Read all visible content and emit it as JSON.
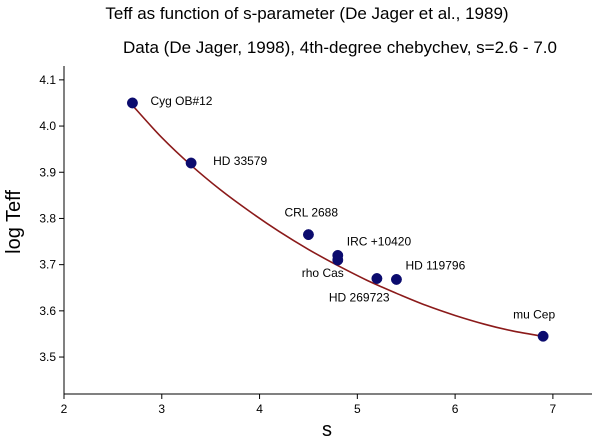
{
  "chart_data": {
    "type": "scatter",
    "title": "Teff as function of s-parameter (De Jager et al., 1989)",
    "subtitle": "Data (De Jager, 1998), 4th-degree chebychev, s=2.6 - 7.0",
    "xlabel": "s",
    "ylabel": "log Teff",
    "xlim": [
      2,
      7.4
    ],
    "ylim": [
      3.42,
      4.13
    ],
    "x_ticks": [
      2,
      3,
      4,
      5,
      6,
      7
    ],
    "y_ticks": [
      3.5,
      3.6,
      3.7,
      3.8,
      3.9,
      4.0,
      4.1
    ],
    "x_tick_labels": [
      "2",
      "3",
      "4",
      "5",
      "6",
      "7"
    ],
    "y_tick_labels": [
      "3.5",
      "3.6",
      "3.7",
      "3.8",
      "3.9",
      "4.0",
      "4.1"
    ],
    "grid": false,
    "points": [
      {
        "label": "Cyg OB#12",
        "x": 2.7,
        "y": 4.05
      },
      {
        "label": "HD 33579",
        "x": 3.3,
        "y": 3.92
      },
      {
        "label": "CRL 2688",
        "x": 4.5,
        "y": 3.765
      },
      {
        "label": "IRC +10420",
        "x": 4.8,
        "y": 3.72
      },
      {
        "label": "rho Cas",
        "x": 4.8,
        "y": 3.71
      },
      {
        "label": "HD 269723",
        "x": 5.2,
        "y": 3.67
      },
      {
        "label": "HD 119796",
        "x": 5.4,
        "y": 3.668
      },
      {
        "label": "mu Cep",
        "x": 6.9,
        "y": 3.545
      }
    ],
    "fit_curve": {
      "x": [
        2.7,
        3.0,
        3.3,
        3.6,
        3.9,
        4.2,
        4.5,
        4.8,
        5.1,
        5.4,
        5.7,
        6.0,
        6.3,
        6.6,
        6.9
      ],
      "y": [
        4.045,
        3.975,
        3.915,
        3.862,
        3.815,
        3.772,
        3.733,
        3.698,
        3.666,
        3.638,
        3.612,
        3.59,
        3.571,
        3.556,
        3.545
      ]
    },
    "colors": {
      "points": "#0b0b6e",
      "curve": "#8b1a1a"
    }
  }
}
